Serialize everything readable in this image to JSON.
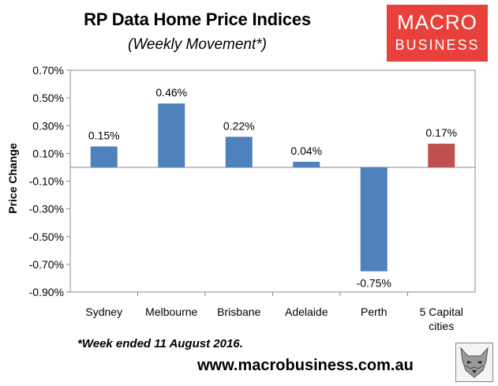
{
  "header": {
    "title": "RP Data Home Price Indices",
    "subtitle": "(Weekly Movement*)"
  },
  "logo": {
    "line1": "MACRO",
    "line2": "BUSINESS",
    "bg_color": "#e8403a"
  },
  "footer": {
    "footnote": "*Week ended 11 August 2016.",
    "url": "www.macrobusiness.com.au",
    "mascot_icon": "wolf-icon"
  },
  "chart_data": {
    "type": "bar",
    "title": "RP Data Home Price Indices",
    "subtitle": "(Weekly Movement*)",
    "xlabel": "",
    "ylabel": "Price Change",
    "categories": [
      "Sydney",
      "Melbourne",
      "Brisbane",
      "Adelaide",
      "Perth",
      "5 Capital cities"
    ],
    "values": [
      0.15,
      0.46,
      0.22,
      0.04,
      -0.75,
      0.17
    ],
    "data_labels": [
      "0.15%",
      "0.46%",
      "0.22%",
      "0.04%",
      "-0.75%",
      "0.17%"
    ],
    "ylim": [
      -0.9,
      0.7
    ],
    "yticks": [
      0.7,
      0.5,
      0.3,
      0.1,
      -0.1,
      -0.3,
      -0.5,
      -0.7,
      -0.9
    ],
    "ytick_labels": [
      "0.70%",
      "0.50%",
      "0.30%",
      "0.10%",
      "-0.10%",
      "-0.30%",
      "-0.50%",
      "-0.70%",
      "-0.90%"
    ],
    "grid": false,
    "legend": "none",
    "colors": {
      "default_bar": "#4f81bd",
      "highlight_bar": "#c0504d",
      "highlight_index": 5,
      "axis": "#888888",
      "plot_border": "#888888"
    }
  }
}
